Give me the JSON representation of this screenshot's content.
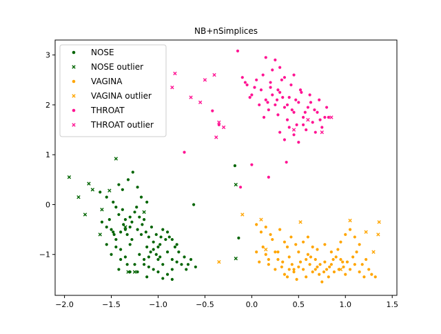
{
  "chart_data": {
    "type": "scatter",
    "title": "NB+nSimplices",
    "xlabel": "",
    "ylabel": "",
    "xlim": [
      -2.1,
      1.55
    ],
    "ylim": [
      -1.82,
      3.3
    ],
    "xticks": [
      -2.0,
      -1.5,
      -1.0,
      -0.5,
      0.0,
      0.5,
      1.0,
      1.5
    ],
    "yticks": [
      -1,
      0,
      1,
      2,
      3
    ],
    "xtick_labels": [
      "−2.0",
      "−1.5",
      "−1.0",
      "−0.5",
      "0.0",
      "0.5",
      "1.0",
      "1.5"
    ],
    "ytick_labels": [
      "−1",
      "0",
      "1",
      "2",
      "3"
    ],
    "grid": false,
    "legend_position": "top-left",
    "series": [
      {
        "name": "NOSE",
        "color": "#006400",
        "marker": "dot",
        "points": [
          [
            -1.62,
            0.25
          ],
          [
            -1.55,
            0.15
          ],
          [
            -1.48,
            0.05
          ],
          [
            -1.45,
            -0.05
          ],
          [
            -1.52,
            -0.3
          ],
          [
            -1.42,
            -0.2
          ],
          [
            -1.38,
            -0.1
          ],
          [
            -1.35,
            -0.3
          ],
          [
            -1.3,
            -0.45
          ],
          [
            -1.25,
            -0.15
          ],
          [
            -1.22,
            -0.5
          ],
          [
            -1.18,
            -0.6
          ],
          [
            -1.15,
            -0.3
          ],
          [
            -1.1,
            -0.65
          ],
          [
            -1.05,
            -0.75
          ],
          [
            -1.0,
            -0.85
          ],
          [
            -0.95,
            -0.5
          ],
          [
            -0.9,
            -0.95
          ],
          [
            -0.85,
            -1.1
          ],
          [
            -0.8,
            -0.8
          ],
          [
            -1.45,
            -0.7
          ],
          [
            -1.4,
            -0.9
          ],
          [
            -1.35,
            -1.05
          ],
          [
            -1.3,
            -0.8
          ],
          [
            -1.25,
            -1.2
          ],
          [
            -1.2,
            -1.0
          ],
          [
            -1.15,
            -1.1
          ],
          [
            -1.1,
            -1.25
          ],
          [
            -1.05,
            -1.3
          ],
          [
            -1.0,
            -1.1
          ],
          [
            -0.95,
            -1.2
          ],
          [
            -0.9,
            -1.4
          ],
          [
            -0.85,
            -1.3
          ],
          [
            -0.8,
            -1.15
          ],
          [
            -0.75,
            -1.2
          ],
          [
            -0.7,
            -1.3
          ],
          [
            -0.65,
            -1.1
          ],
          [
            -0.6,
            -1.25
          ],
          [
            -1.5,
            -0.5
          ],
          [
            -1.55,
            -0.45
          ],
          [
            -1.6,
            -0.35
          ],
          [
            -1.48,
            -0.55
          ],
          [
            -1.33,
            -0.6
          ],
          [
            -1.28,
            -0.7
          ],
          [
            -1.12,
            -0.85
          ],
          [
            -1.08,
            -0.95
          ],
          [
            -1.02,
            -1.0
          ],
          [
            -0.98,
            -1.05
          ],
          [
            -1.42,
            0.4
          ],
          [
            -1.38,
            0.3
          ],
          [
            -1.32,
            0.5
          ],
          [
            -1.27,
            0.65
          ],
          [
            -1.22,
            0.35
          ],
          [
            -1.18,
            0.15
          ],
          [
            -1.12,
            0.05
          ],
          [
            -1.2,
            -0.25
          ],
          [
            -1.28,
            -0.35
          ],
          [
            -1.35,
            -0.5
          ],
          [
            -1.4,
            -0.55
          ],
          [
            -1.45,
            -0.85
          ],
          [
            -1.4,
            -1.1
          ],
          [
            -1.33,
            -1.2
          ],
          [
            -1.22,
            -1.35
          ],
          [
            -1.15,
            -1.2
          ],
          [
            -1.1,
            -1.05
          ],
          [
            -1.05,
            -0.9
          ],
          [
            -0.98,
            -0.8
          ],
          [
            -0.92,
            -0.7
          ],
          [
            -0.88,
            -0.65
          ],
          [
            -0.82,
            -0.85
          ],
          [
            -0.78,
            -0.95
          ],
          [
            -0.72,
            -1.05
          ],
          [
            -0.68,
            -1.2
          ],
          [
            -0.95,
            -1.48
          ],
          [
            -0.85,
            -1.5
          ],
          [
            -1.0,
            -1.35
          ],
          [
            -1.12,
            -1.45
          ],
          [
            -1.3,
            -1.35
          ],
          [
            -1.42,
            -1.3
          ],
          [
            -1.5,
            -1.0
          ],
          [
            -1.55,
            -0.8
          ],
          [
            -1.47,
            -0.6
          ],
          [
            -1.37,
            -0.4
          ],
          [
            -1.3,
            -0.25
          ],
          [
            -1.23,
            -0.05
          ],
          [
            -1.17,
            -0.4
          ],
          [
            -1.13,
            -0.55
          ],
          [
            -1.07,
            -0.45
          ],
          [
            -1.02,
            -0.6
          ],
          [
            -0.97,
            -0.65
          ],
          [
            -0.9,
            -0.55
          ],
          [
            -0.85,
            -0.7
          ],
          [
            -0.62,
            0.0
          ],
          [
            -0.18,
            0.78
          ],
          [
            -0.14,
            -0.67
          ]
        ]
      },
      {
        "name": "NOSE outlier",
        "color": "#006400",
        "marker": "x",
        "points": [
          [
            -1.95,
            0.55
          ],
          [
            -1.85,
            0.15
          ],
          [
            -1.78,
            -0.2
          ],
          [
            -1.74,
            0.42
          ],
          [
            -1.7,
            0.3
          ],
          [
            -1.6,
            -0.1
          ],
          [
            -1.52,
            0.28
          ],
          [
            -1.45,
            0.92
          ],
          [
            -1.35,
            -0.45
          ],
          [
            -1.62,
            -0.6
          ],
          [
            -1.15,
            -0.15
          ],
          [
            -1.25,
            -1.35
          ],
          [
            -1.32,
            -1.35
          ],
          [
            -0.17,
            0.4
          ],
          [
            -0.17,
            -1.08
          ]
        ]
      },
      {
        "name": "VAGINA",
        "color": "#FFA500",
        "marker": "dot",
        "points": [
          [
            0.05,
            -0.4
          ],
          [
            0.1,
            -0.55
          ],
          [
            0.12,
            -0.85
          ],
          [
            0.15,
            -1.0
          ],
          [
            0.18,
            -1.2
          ],
          [
            0.22,
            -0.7
          ],
          [
            0.25,
            -0.95
          ],
          [
            0.28,
            -1.1
          ],
          [
            0.32,
            -1.25
          ],
          [
            0.35,
            -1.4
          ],
          [
            0.38,
            -0.85
          ],
          [
            0.4,
            -1.05
          ],
          [
            0.43,
            -1.2
          ],
          [
            0.45,
            -1.35
          ],
          [
            0.48,
            -1.5
          ],
          [
            0.5,
            -0.95
          ],
          [
            0.52,
            -1.15
          ],
          [
            0.55,
            -1.3
          ],
          [
            0.58,
            -1.45
          ],
          [
            0.6,
            -1.0
          ],
          [
            0.62,
            -1.2
          ],
          [
            0.65,
            -1.35
          ],
          [
            0.68,
            -1.1
          ],
          [
            0.7,
            -1.25
          ],
          [
            0.72,
            -1.4
          ],
          [
            0.75,
            -1.55
          ],
          [
            0.78,
            -1.15
          ],
          [
            0.8,
            -1.3
          ],
          [
            0.82,
            -1.45
          ],
          [
            0.85,
            -1.2
          ],
          [
            0.88,
            -1.35
          ],
          [
            0.9,
            -1.05
          ],
          [
            0.92,
            -0.9
          ],
          [
            0.95,
            -1.1
          ],
          [
            0.98,
            -1.25
          ],
          [
            1.0,
            -1.4
          ],
          [
            1.02,
            -1.15
          ],
          [
            1.05,
            -1.3
          ],
          [
            1.08,
            -1.05
          ],
          [
            1.1,
            -1.2
          ],
          [
            1.12,
            -0.95
          ],
          [
            1.15,
            -1.35
          ],
          [
            1.18,
            -1.2
          ],
          [
            1.2,
            -1.45
          ],
          [
            1.22,
            -1.1
          ],
          [
            1.25,
            -1.3
          ],
          [
            1.28,
            -1.4
          ],
          [
            1.32,
            -1.45
          ],
          [
            0.2,
            -0.6
          ],
          [
            0.3,
            -0.5
          ],
          [
            0.35,
            -0.75
          ],
          [
            0.42,
            -0.65
          ],
          [
            0.47,
            -0.8
          ],
          [
            0.55,
            -0.75
          ],
          [
            0.6,
            -0.65
          ],
          [
            0.65,
            -0.85
          ],
          [
            0.7,
            -0.9
          ],
          [
            0.78,
            -0.8
          ],
          [
            0.85,
            -0.95
          ],
          [
            0.95,
            -0.75
          ],
          [
            1.0,
            -0.6
          ],
          [
            1.05,
            -0.5
          ],
          [
            1.1,
            -0.65
          ],
          [
            1.15,
            -0.8
          ],
          [
            0.15,
            -0.45
          ],
          [
            0.28,
            -0.95
          ],
          [
            0.33,
            -1.15
          ],
          [
            0.4,
            -1.3
          ],
          [
            0.5,
            -1.25
          ],
          [
            0.58,
            -1.1
          ],
          [
            0.63,
            -1.05
          ],
          [
            0.68,
            -1.3
          ],
          [
            0.73,
            -1.2
          ],
          [
            0.77,
            -1.35
          ],
          [
            0.83,
            -1.25
          ],
          [
            0.87,
            -1.1
          ],
          [
            0.93,
            -1.3
          ],
          [
            0.97,
            -1.15
          ],
          [
            0.45,
            -1.3
          ],
          [
            0.38,
            -1.45
          ],
          [
            0.25,
            -1.3
          ],
          [
            0.18,
            -1.1
          ],
          [
            0.08,
            -1.15
          ],
          [
            0.05,
            -0.95
          ]
        ]
      },
      {
        "name": "VAGINA outlier",
        "color": "#FFA500",
        "marker": "x",
        "points": [
          [
            -0.35,
            -1.15
          ],
          [
            -0.1,
            -0.2
          ],
          [
            0.1,
            -0.3
          ],
          [
            0.15,
            -0.9
          ],
          [
            0.52,
            -0.35
          ],
          [
            1.05,
            -0.32
          ],
          [
            1.22,
            -0.55
          ],
          [
            1.36,
            -0.35
          ],
          [
            1.35,
            -0.6
          ],
          [
            1.3,
            -0.95
          ],
          [
            0.95,
            -1.3
          ]
        ]
      },
      {
        "name": "THROAT",
        "color": "#FF1493",
        "marker": "dot",
        "points": [
          [
            -0.15,
            3.08
          ],
          [
            -0.1,
            2.55
          ],
          [
            -0.05,
            2.4
          ],
          [
            0.0,
            2.2
          ],
          [
            0.05,
            2.5
          ],
          [
            0.1,
            2.3
          ],
          [
            0.12,
            2.6
          ],
          [
            0.15,
            2.1
          ],
          [
            0.18,
            1.9
          ],
          [
            0.2,
            2.35
          ],
          [
            0.22,
            2.7
          ],
          [
            0.25,
            2.0
          ],
          [
            0.28,
            1.8
          ],
          [
            0.3,
            2.25
          ],
          [
            0.32,
            2.5
          ],
          [
            0.35,
            1.95
          ],
          [
            0.38,
            1.7
          ],
          [
            0.4,
            2.15
          ],
          [
            0.42,
            2.4
          ],
          [
            0.45,
            1.85
          ],
          [
            0.48,
            1.6
          ],
          [
            0.5,
            2.05
          ],
          [
            0.52,
            2.3
          ],
          [
            0.55,
            1.75
          ],
          [
            0.58,
            1.5
          ],
          [
            0.6,
            1.95
          ],
          [
            0.62,
            2.2
          ],
          [
            0.65,
            1.65
          ],
          [
            0.68,
            1.45
          ],
          [
            0.7,
            1.85
          ],
          [
            0.72,
            2.1
          ],
          [
            0.75,
            1.55
          ],
          [
            0.78,
            1.75
          ],
          [
            0.8,
            1.95
          ],
          [
            0.82,
            1.75
          ],
          [
            0.25,
            2.9
          ],
          [
            0.3,
            2.75
          ],
          [
            0.35,
            2.55
          ],
          [
            0.45,
            2.6
          ],
          [
            0.15,
            2.95
          ],
          [
            0.2,
            2.45
          ],
          [
            0.28,
            2.3
          ],
          [
            0.33,
            2.15
          ],
          [
            0.38,
            2.0
          ],
          [
            0.43,
            1.9
          ],
          [
            0.47,
            2.1
          ],
          [
            0.53,
            2.25
          ],
          [
            0.57,
            1.85
          ],
          [
            0.63,
            2.05
          ],
          [
            0.67,
            1.9
          ],
          [
            0.73,
            1.7
          ],
          [
            0.3,
            1.45
          ],
          [
            0.35,
            1.3
          ],
          [
            0.4,
            1.55
          ],
          [
            0.45,
            1.4
          ],
          [
            0.5,
            1.25
          ],
          [
            0.55,
            1.6
          ],
          [
            0.27,
            2.1
          ],
          [
            0.22,
            2.2
          ],
          [
            0.17,
            2.05
          ],
          [
            0.13,
            1.75
          ],
          [
            0.08,
            2.0
          ],
          [
            0.03,
            2.35
          ],
          [
            -0.02,
            2.15
          ],
          [
            -0.07,
            2.45
          ],
          [
            0.0,
            0.8
          ],
          [
            0.18,
            0.55
          ],
          [
            0.37,
            0.85
          ],
          [
            -0.12,
            0.35
          ],
          [
            -0.72,
            1.05
          ],
          [
            -0.42,
            1.88
          ],
          [
            -0.35,
            1.6
          ]
        ]
      },
      {
        "name": "THROAT outlier",
        "color": "#FF1493",
        "marker": "x",
        "points": [
          [
            -0.82,
            2.63
          ],
          [
            -0.85,
            2.35
          ],
          [
            -0.65,
            2.15
          ],
          [
            -0.55,
            2.05
          ],
          [
            -0.5,
            2.5
          ],
          [
            -0.4,
            2.6
          ],
          [
            -0.35,
            1.65
          ],
          [
            -0.38,
            1.35
          ],
          [
            -0.3,
            1.55
          ],
          [
            0.45,
            1.5
          ],
          [
            0.6,
            1.7
          ],
          [
            0.85,
            1.75
          ],
          [
            0.75,
            1.45
          ]
        ]
      }
    ]
  }
}
